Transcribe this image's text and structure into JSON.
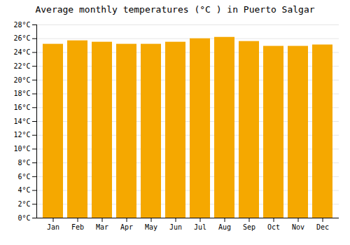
{
  "chart_data": {
    "type": "bar",
    "title": "Average monthly temperatures (°C ) in Puerto Salgar",
    "categories": [
      "Jan",
      "Feb",
      "Mar",
      "Apr",
      "May",
      "Jun",
      "Jul",
      "Aug",
      "Sep",
      "Oct",
      "Nov",
      "Dec"
    ],
    "values": [
      25.2,
      25.7,
      25.5,
      25.2,
      25.2,
      25.5,
      26.0,
      26.2,
      25.6,
      24.9,
      24.9,
      25.1
    ],
    "color": "#F5A800",
    "ylim": [
      0,
      28
    ],
    "yticks": [
      {
        "value": 0,
        "label": "0°C"
      },
      {
        "value": 2,
        "label": "2°C"
      },
      {
        "value": 4,
        "label": "4°C"
      },
      {
        "value": 6,
        "label": "6°C"
      },
      {
        "value": 8,
        "label": "8°C"
      },
      {
        "value": 10,
        "label": "10°C"
      },
      {
        "value": 12,
        "label": "12°C"
      },
      {
        "value": 14,
        "label": "14°C"
      },
      {
        "value": 16,
        "label": "16°C"
      },
      {
        "value": 18,
        "label": "18°C"
      },
      {
        "value": 20,
        "label": "20°C"
      },
      {
        "value": 22,
        "label": "22°C"
      },
      {
        "value": 24,
        "label": "24°C"
      },
      {
        "value": 26,
        "label": "26°C"
      },
      {
        "value": 28,
        "label": "28°C"
      }
    ],
    "grid": true
  }
}
